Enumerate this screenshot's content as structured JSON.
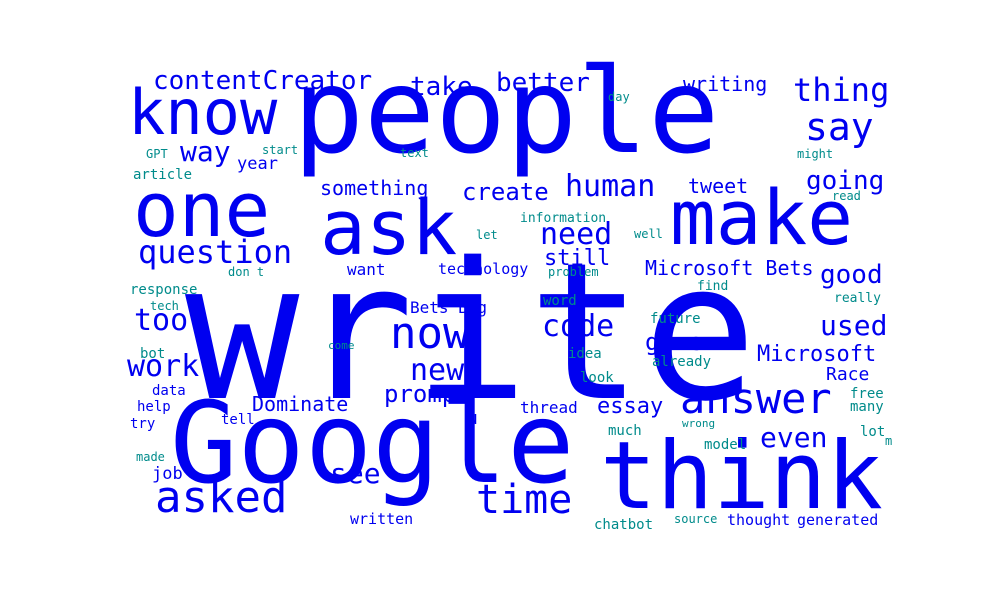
{
  "words": [
    {
      "text": "write",
      "color": "#0000f0",
      "weight": 100
    },
    {
      "text": "people",
      "color": "#0000f0",
      "weight": 60
    },
    {
      "text": "Google",
      "color": "#0000f0",
      "weight": 55
    },
    {
      "text": "think",
      "color": "#0000f0",
      "weight": 45
    },
    {
      "text": "make",
      "color": "#0000f0",
      "weight": 36
    },
    {
      "text": "one",
      "color": "#0000f0",
      "weight": 36
    },
    {
      "text": "ask",
      "color": "#0000f0",
      "weight": 36
    },
    {
      "text": "know",
      "color": "#0000f0",
      "weight": 28
    },
    {
      "text": "answer",
      "color": "#0000f0",
      "weight": 22
    },
    {
      "text": "now",
      "color": "#0000f0",
      "weight": 21
    },
    {
      "text": "asked",
      "color": "#0000f0",
      "weight": 20
    },
    {
      "text": "time",
      "color": "#0000f0",
      "weight": 19
    },
    {
      "text": "say",
      "color": "#0000f0",
      "weight": 17
    },
    {
      "text": "need",
      "color": "#0000f0",
      "weight": 16
    },
    {
      "text": "question",
      "color": "#0000f0",
      "weight": 16
    },
    {
      "text": "human",
      "color": "#0000f0",
      "weight": 16
    },
    {
      "text": "thing",
      "color": "#0000f0",
      "weight": 15
    },
    {
      "text": "work",
      "color": "#0000f0",
      "weight": 15
    },
    {
      "text": "code",
      "color": "#0000f0",
      "weight": 15
    },
    {
      "text": "new",
      "color": "#0000f0",
      "weight": 15
    },
    {
      "text": "contentCreator",
      "color": "#0000f0",
      "weight": 14
    },
    {
      "text": "tool",
      "color": "#0000f0",
      "weight": 14
    },
    {
      "text": "better",
      "color": "#0000f0",
      "weight": 13
    },
    {
      "text": "used",
      "color": "#0000f0",
      "weight": 13
    },
    {
      "text": "way",
      "color": "#0000f0",
      "weight": 13
    },
    {
      "text": "even",
      "color": "#0000f0",
      "weight": 13
    },
    {
      "text": "see",
      "color": "#0000f0",
      "weight": 13
    },
    {
      "text": "going",
      "color": "#0000f0",
      "weight": 12
    },
    {
      "text": "good",
      "color": "#0000f0",
      "weight": 12
    },
    {
      "text": "take",
      "color": "#0000f0",
      "weight": 11
    },
    {
      "text": "give",
      "color": "#0000f0",
      "weight": 11
    },
    {
      "text": "create",
      "color": "#0000f0",
      "weight": 11
    },
    {
      "text": "prompt",
      "color": "#0000f0",
      "weight": 11
    },
    {
      "text": "essay",
      "color": "#0000f0",
      "weight": 11
    },
    {
      "text": "Microsoft",
      "color": "#0000f0",
      "weight": 10
    },
    {
      "text": "still",
      "color": "#0000f0",
      "weight": 10
    },
    {
      "text": "Microsoft Bets",
      "color": "#0000f0",
      "weight": 10
    },
    {
      "text": "tweet",
      "color": "#0000f0",
      "weight": 10
    },
    {
      "text": "Dominate",
      "color": "#0000f0",
      "weight": 10
    },
    {
      "text": "something",
      "color": "#0000f0",
      "weight": 10
    },
    {
      "text": "Race",
      "color": "#0000f0",
      "weight": 9
    },
    {
      "text": "writing",
      "color": "#0000f0",
      "weight": 9
    },
    {
      "text": "Bets Big",
      "color": "#0000f0",
      "weight": 8
    },
    {
      "text": "year",
      "color": "#0000f0",
      "weight": 8
    },
    {
      "text": "job",
      "color": "#0000f0",
      "weight": 8
    },
    {
      "text": "thread",
      "color": "#0000f0",
      "weight": 8
    },
    {
      "text": "want",
      "color": "#0000f0",
      "weight": 8
    },
    {
      "text": "technology",
      "color": "#0000f0",
      "weight": 8
    },
    {
      "text": "written",
      "color": "#0000f0",
      "weight": 7
    },
    {
      "text": "thought",
      "color": "#0000f0",
      "weight": 7
    },
    {
      "text": "u",
      "color": "#0000f0",
      "weight": 7
    },
    {
      "text": "data",
      "color": "#0000f0",
      "weight": 6
    },
    {
      "text": "help",
      "color": "#0000f0",
      "weight": 6
    },
    {
      "text": "try",
      "color": "#0000f0",
      "weight": 6
    },
    {
      "text": "tell",
      "color": "#0000f0",
      "weight": 6
    },
    {
      "text": "generated",
      "color": "#0000f0",
      "weight": 6
    },
    {
      "text": "article",
      "color": "#008b8b",
      "weight": 7
    },
    {
      "text": "response",
      "color": "#008b8b",
      "weight": 6
    },
    {
      "text": "word",
      "color": "#008b8b",
      "weight": 6
    },
    {
      "text": "idea",
      "color": "#008b8b",
      "weight": 6
    },
    {
      "text": "look",
      "color": "#008b8b",
      "weight": 6
    },
    {
      "text": "chatbot",
      "color": "#008b8b",
      "weight": 6
    },
    {
      "text": "much",
      "color": "#008b8b",
      "weight": 6
    },
    {
      "text": "model",
      "color": "#008b8b",
      "weight": 6
    },
    {
      "text": "future",
      "color": "#008b8b",
      "weight": 6
    },
    {
      "text": "already",
      "color": "#008b8b",
      "weight": 6
    },
    {
      "text": "bot",
      "color": "#008b8b",
      "weight": 6
    },
    {
      "text": "many",
      "color": "#008b8b",
      "weight": 6
    },
    {
      "text": "lot",
      "color": "#008b8b",
      "weight": 6
    },
    {
      "text": "free",
      "color": "#008b8b",
      "weight": 6
    },
    {
      "text": "really",
      "color": "#008b8b",
      "weight": 5
    },
    {
      "text": "find",
      "color": "#008b8b",
      "weight": 5
    },
    {
      "text": "problem",
      "color": "#008b8b",
      "weight": 5
    },
    {
      "text": "let",
      "color": "#008b8b",
      "weight": 5
    },
    {
      "text": "information",
      "color": "#008b8b",
      "weight": 5
    },
    {
      "text": "well",
      "color": "#008b8b",
      "weight": 5
    },
    {
      "text": "day",
      "color": "#008b8b",
      "weight": 5
    },
    {
      "text": "start",
      "color": "#008b8b",
      "weight": 5
    },
    {
      "text": "text",
      "color": "#008b8b",
      "weight": 5
    },
    {
      "text": "GPT",
      "color": "#008b8b",
      "weight": 5
    },
    {
      "text": "don t",
      "color": "#008b8b",
      "weight": 5
    },
    {
      "text": "tech",
      "color": "#008b8b",
      "weight": 5
    },
    {
      "text": "come",
      "color": "#008b8b",
      "weight": 5
    },
    {
      "text": "made",
      "color": "#008b8b",
      "weight": 5
    },
    {
      "text": "wrong",
      "color": "#008b8b",
      "weight": 5
    },
    {
      "text": "source",
      "color": "#008b8b",
      "weight": 5
    },
    {
      "text": "might",
      "color": "#008b8b",
      "weight": 5
    },
    {
      "text": "read",
      "color": "#008b8b",
      "weight": 5
    },
    {
      "text": "m",
      "color": "#008b8b",
      "weight": 5
    }
  ]
}
